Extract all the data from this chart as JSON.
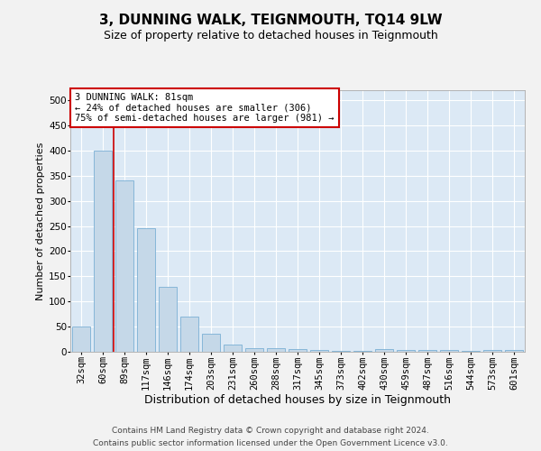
{
  "title": "3, DUNNING WALK, TEIGNMOUTH, TQ14 9LW",
  "subtitle": "Size of property relative to detached houses in Teignmouth",
  "xlabel": "Distribution of detached houses by size in Teignmouth",
  "ylabel": "Number of detached properties",
  "footer_line1": "Contains HM Land Registry data © Crown copyright and database right 2024.",
  "footer_line2": "Contains public sector information licensed under the Open Government Licence v3.0.",
  "categories": [
    "32sqm",
    "60sqm",
    "89sqm",
    "117sqm",
    "146sqm",
    "174sqm",
    "203sqm",
    "231sqm",
    "260sqm",
    "288sqm",
    "317sqm",
    "345sqm",
    "373sqm",
    "402sqm",
    "430sqm",
    "459sqm",
    "487sqm",
    "516sqm",
    "544sqm",
    "573sqm",
    "601sqm"
  ],
  "values": [
    50,
    400,
    340,
    245,
    130,
    70,
    35,
    15,
    7,
    7,
    5,
    3,
    2,
    2,
    5,
    3,
    3,
    3,
    2,
    3,
    3
  ],
  "bar_color": "#c5d8e8",
  "bar_edge_color": "#7bafd4",
  "vline_color": "#cc0000",
  "vline_x": 1.5,
  "annotation_text": "3 DUNNING WALK: 81sqm\n← 24% of detached houses are smaller (306)\n75% of semi-detached houses are larger (981) →",
  "annotation_box_color": "#ffffff",
  "annotation_box_edge": "#cc0000",
  "ylim": [
    0,
    520
  ],
  "yticks": [
    0,
    50,
    100,
    150,
    200,
    250,
    300,
    350,
    400,
    450,
    500
  ],
  "fig_bg_color": "#f2f2f2",
  "plot_bg_color": "#dce9f5",
  "grid_color": "#ffffff",
  "title_fontsize": 11,
  "subtitle_fontsize": 9,
  "xlabel_fontsize": 9,
  "ylabel_fontsize": 8,
  "tick_fontsize": 7.5,
  "annotation_fontsize": 7.5,
  "footer_fontsize": 6.5
}
